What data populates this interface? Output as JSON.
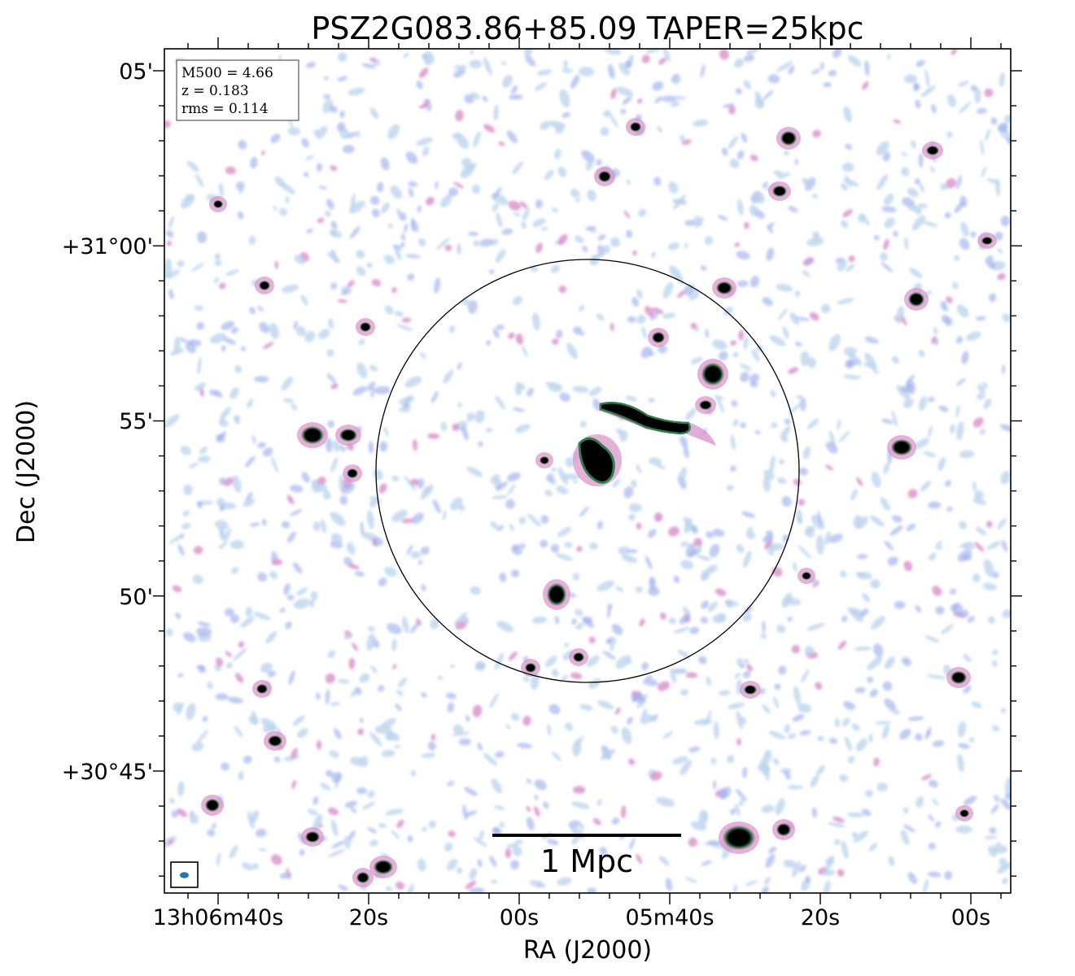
{
  "title": "PSZ2G083.86+85.09 TAPER=25kpc",
  "info_box": {
    "lines": [
      "M500 = 4.66",
      "z = 0.183",
      "rms = 0.114"
    ]
  },
  "axes": {
    "xlabel": "RA (J2000)",
    "ylabel": "Dec (J2000)",
    "x_ticks": [
      "13h06m40s",
      "20s",
      "00s",
      "05m40s",
      "20s",
      "00s"
    ],
    "y_ticks": [
      "05'",
      "+31°00'",
      "55'",
      "50'",
      "+30°45'"
    ]
  },
  "scale_bar": {
    "label": "1 Mpc"
  },
  "colors": {
    "frame": "#000000",
    "beam": "#1f77b4",
    "noise_light": "#b9d3ec",
    "noise_blue": "#9fb0ec",
    "noise_pink": "#d890c8",
    "source_core": "#000000",
    "source_ring": "#2e7d4a"
  }
}
